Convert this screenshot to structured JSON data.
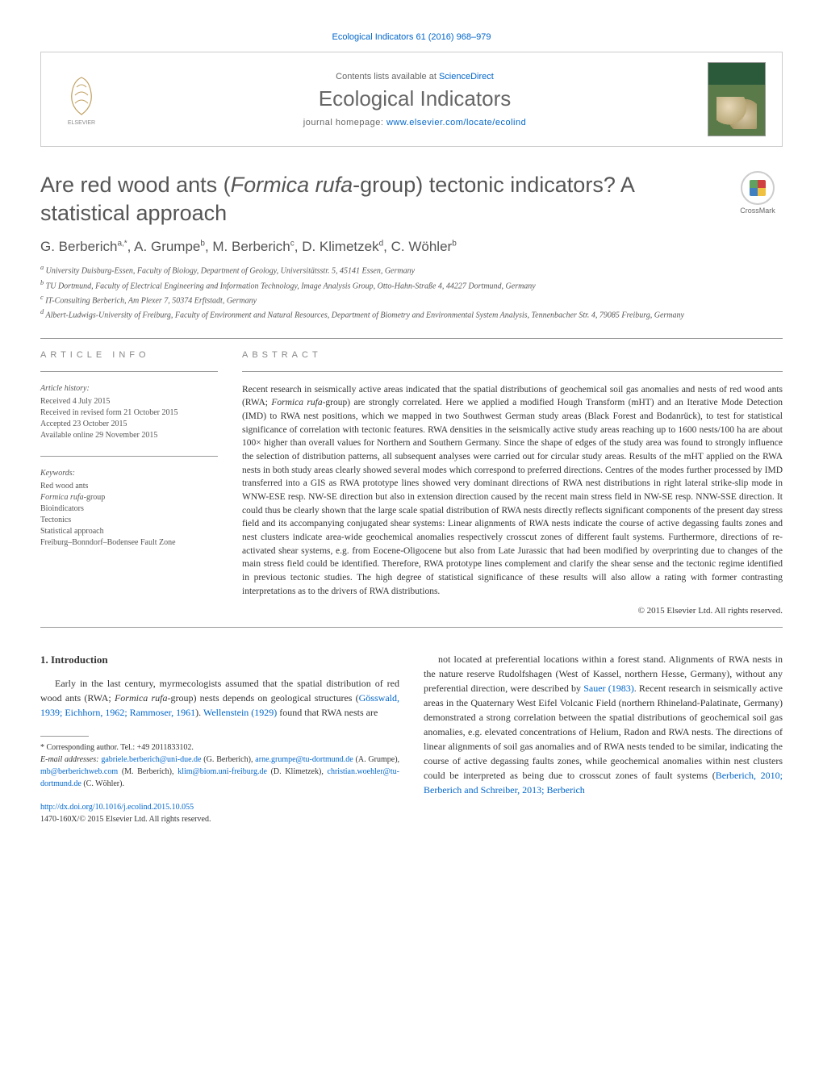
{
  "colors": {
    "link": "#0066cc",
    "text": "#333333",
    "muted": "#666666",
    "border": "#cccccc",
    "background": "#ffffff"
  },
  "header": {
    "top_citation": "Ecological Indicators 61 (2016) 968–979",
    "contents_prefix": "Contents lists available at ",
    "contents_link": "ScienceDirect",
    "journal_name": "Ecological Indicators",
    "homepage_prefix": "journal homepage: ",
    "homepage_link": "www.elsevier.com/locate/ecolind",
    "publisher_logo_label": "ELSEVIER",
    "crossmark_label": "CrossMark"
  },
  "article": {
    "title_pre": "Are red wood ants (",
    "title_italic": "Formica rufa",
    "title_post": "-group) tectonic indicators? A statistical approach",
    "authors_html": "G. Berberich",
    "authors": [
      {
        "name": "G. Berberich",
        "sup": "a,*"
      },
      {
        "name": "A. Grumpe",
        "sup": "b"
      },
      {
        "name": "M. Berberich",
        "sup": "c"
      },
      {
        "name": "D. Klimetzek",
        "sup": "d"
      },
      {
        "name": "C. Wöhler",
        "sup": "b"
      }
    ],
    "affiliations": [
      {
        "key": "a",
        "text": "University Duisburg-Essen, Faculty of Biology, Department of Geology, Universitätsstr. 5, 45141 Essen, Germany"
      },
      {
        "key": "b",
        "text": "TU Dortmund, Faculty of Electrical Engineering and Information Technology, Image Analysis Group, Otto-Hahn-Straße 4, 44227 Dortmund, Germany"
      },
      {
        "key": "c",
        "text": "IT-Consulting Berberich, Am Plexer 7, 50374 Erftstadt, Germany"
      },
      {
        "key": "d",
        "text": "Albert-Ludwigs-University of Freiburg, Faculty of Environment and Natural Resources, Department of Biometry and Environmental System Analysis, Tennenbacher Str. 4, 79085 Freiburg, Germany"
      }
    ]
  },
  "article_info": {
    "heading": "article info",
    "history_label": "Article history:",
    "history": [
      "Received 4 July 2015",
      "Received in revised form 21 October 2015",
      "Accepted 23 October 2015",
      "Available online 29 November 2015"
    ],
    "keywords_label": "Keywords:",
    "keywords": [
      "Red wood ants",
      "Formica rufa-group",
      "Bioindicators",
      "Tectonics",
      "Statistical approach",
      "Freiburg–Bonndorf–Bodensee Fault Zone"
    ]
  },
  "abstract": {
    "heading": "abstract",
    "text": "Recent research in seismically active areas indicated that the spatial distributions of geochemical soil gas anomalies and nests of red wood ants (RWA; Formica rufa-group) are strongly correlated. Here we applied a modified Hough Transform (mHT) and an Iterative Mode Detection (IMD) to RWA nest positions, which we mapped in two Southwest German study areas (Black Forest and Bodanrück), to test for statistical significance of correlation with tectonic features. RWA densities in the seismically active study areas reaching up to 1600 nests/100 ha are about 100× higher than overall values for Northern and Southern Germany. Since the shape of edges of the study area was found to strongly influence the selection of distribution patterns, all subsequent analyses were carried out for circular study areas. Results of the mHT applied on the RWA nests in both study areas clearly showed several modes which correspond to preferred directions. Centres of the modes further processed by IMD transferred into a GIS as RWA prototype lines showed very dominant directions of RWA nest distributions in right lateral strike-slip mode in WNW-ESE resp. NW-SE direction but also in extension direction caused by the recent main stress field in NW-SE resp. NNW-SSE direction. It could thus be clearly shown that the large scale spatial distribution of RWA nests directly reflects significant components of the present day stress field and its accompanying conjugated shear systems: Linear alignments of RWA nests indicate the course of active degassing faults zones and nest clusters indicate area-wide geochemical anomalies respectively crosscut zones of different fault systems. Furthermore, directions of re-activated shear systems, e.g. from Eocene-Oligocene but also from Late Jurassic that had been modified by overprinting due to changes of the main stress field could be identified. Therefore, RWA prototype lines complement and clarify the shear sense and the tectonic regime identified in previous tectonic studies. The high degree of statistical significance of these results will also allow a rating with former contrasting interpretations as to the drivers of RWA distributions.",
    "copyright": "© 2015 Elsevier Ltd. All rights reserved."
  },
  "body": {
    "section_number": "1.",
    "section_title": "Introduction",
    "col1_p1": "Early in the last century, myrmecologists assumed that the spatial distribution of red wood ants (RWA; Formica rufa-group) nests depends on geological structures (Gösswald, 1939; Eichhorn, 1962; Rammoser, 1961). Wellenstein (1929) found that RWA nests are",
    "col1_refs": [
      "Gösswald, 1939; Eichhorn, 1962; Rammoser, 1961",
      "Wellenstein (1929)"
    ],
    "col2_p1": "not located at preferential locations within a forest stand. Alignments of RWA nests in the nature reserve Rudolfshagen (West of Kassel, northern Hesse, Germany), without any preferential direction, were described by Sauer (1983). Recent research in seismically active areas in the Quaternary West Eifel Volcanic Field (northern Rhineland-Palatinate, Germany) demonstrated a strong correlation between the spatial distributions of geochemical soil gas anomalies, e.g. elevated concentrations of Helium, Radon and RWA nests. The directions of linear alignments of soil gas anomalies and of RWA nests tended to be similar, indicating the course of active degassing faults zones, while geochemical anomalies within nest clusters could be interpreted as being due to crosscut zones of fault systems (Berberich, 2010; Berberich and Schreiber, 2013; Berberich",
    "col2_refs": [
      "Sauer (1983)",
      "Berberich, 2010; Berberich and Schreiber, 2013; Berberich"
    ]
  },
  "footnotes": {
    "corresponding": "* Corresponding author. Tel.: +49 2011833102.",
    "email_label": "E-mail addresses:",
    "emails": [
      {
        "addr": "gabriele.berberich@uni-due.de",
        "who": ""
      },
      {
        "addr": "",
        "who": "(G. Berberich),"
      },
      {
        "addr": "arne.grumpe@tu-dortmund.de",
        "who": "(A. Grumpe),"
      },
      {
        "addr": "mb@berberichweb.com",
        "who": "(M. Berberich),"
      },
      {
        "addr": "klim@biom.uni-freiburg.de",
        "who": "(D. Klimetzek),"
      },
      {
        "addr": "christian.woehler@tu-dortmund.de",
        "who": "(C. Wöhler)."
      }
    ]
  },
  "doi": {
    "url": "http://dx.doi.org/10.1016/j.ecolind.2015.10.055",
    "issn_line": "1470-160X/© 2015 Elsevier Ltd. All rights reserved."
  }
}
